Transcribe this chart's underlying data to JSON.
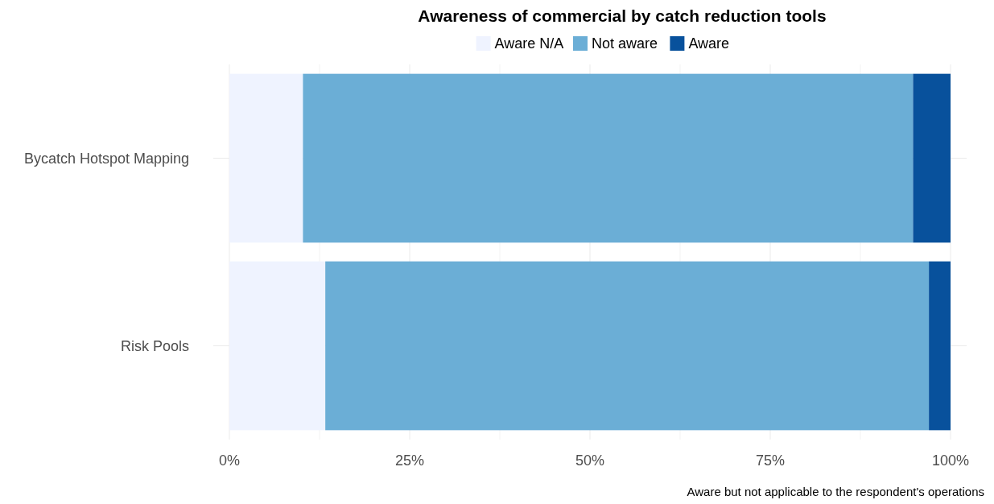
{
  "chart_data": {
    "type": "bar",
    "orientation": "horizontal",
    "stacked": true,
    "title": "Awareness of commercial by catch reduction tools",
    "categories": [
      "Bycatch Hotspot Mapping",
      "Risk Pools"
    ],
    "series": [
      {
        "name": "Aware N/A",
        "color": "#eff3ff",
        "values": [
          10.2,
          13.3
        ]
      },
      {
        "name": "Not aware",
        "color": "#6baed6",
        "values": [
          84.6,
          83.7
        ]
      },
      {
        "name": "Aware",
        "color": "#08519c",
        "values": [
          5.2,
          3.0
        ]
      }
    ],
    "xlim": [
      0,
      100
    ],
    "xticks": [
      {
        "value": 0,
        "label": "0%"
      },
      {
        "value": 12.5,
        "label": null
      },
      {
        "value": 25,
        "label": "25%"
      },
      {
        "value": 37.5,
        "label": null
      },
      {
        "value": 50,
        "label": "50%"
      },
      {
        "value": 62.5,
        "label": null
      },
      {
        "value": 75,
        "label": "75%"
      },
      {
        "value": 87.5,
        "label": null
      },
      {
        "value": 100,
        "label": "100%"
      }
    ],
    "grid": true,
    "legend": "top",
    "annotations": [
      "Aware but not applicable to the respondent's operations"
    ]
  }
}
